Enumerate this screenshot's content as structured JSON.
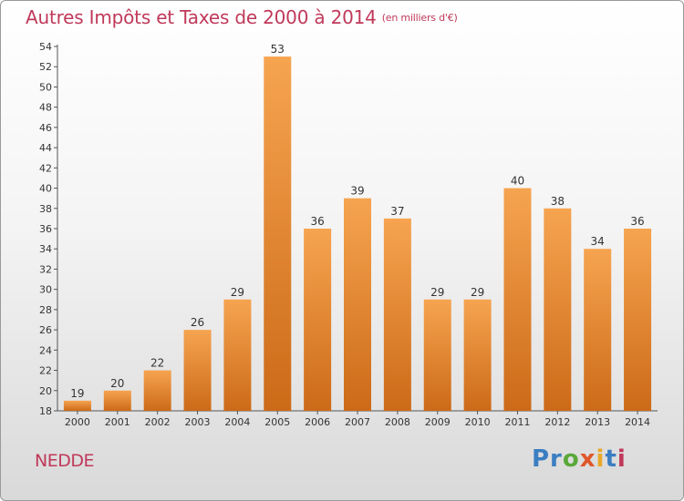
{
  "chart_data": {
    "type": "bar",
    "title": "Autres Impôts et Taxes de 2000 à 2014",
    "subtitle": "(en milliers d'€)",
    "categories": [
      "2000",
      "2001",
      "2002",
      "2003",
      "2004",
      "2005",
      "2006",
      "2007",
      "2008",
      "2009",
      "2010",
      "2011",
      "2012",
      "2013",
      "2014"
    ],
    "values": [
      19,
      20,
      22,
      26,
      29,
      53,
      36,
      39,
      37,
      29,
      29,
      40,
      38,
      34,
      36
    ],
    "ylim": [
      18,
      54
    ],
    "yticks": [
      18,
      20,
      22,
      24,
      26,
      28,
      30,
      32,
      34,
      36,
      38,
      40,
      42,
      44,
      46,
      48,
      50,
      52,
      54
    ],
    "grid": false,
    "bar_color": "#f0903a"
  },
  "footer": {
    "city": "NEDDE",
    "logo_parts": [
      "Pr",
      "o",
      "x",
      "i",
      "t",
      "i"
    ]
  }
}
